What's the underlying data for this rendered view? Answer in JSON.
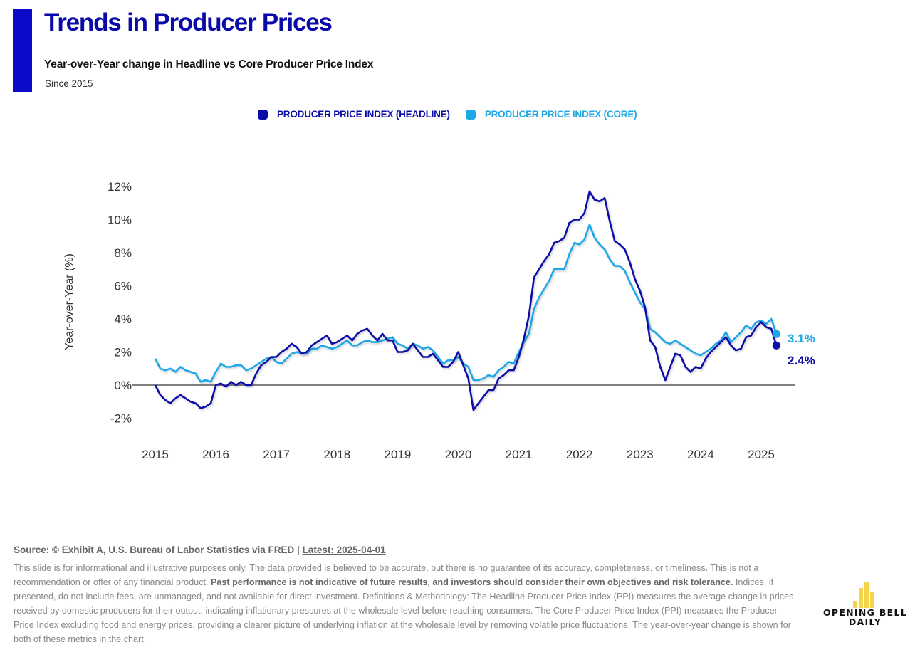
{
  "header": {
    "title": "Trends in Producer Prices",
    "subtitle": "Year-over-Year change in Headline vs Core Producer Price Index",
    "since": "Since 2015"
  },
  "legend": [
    {
      "label": "PRODUCER PRICE INDEX (HEADLINE)",
      "color": "#0a0aa8"
    },
    {
      "label": "PRODUCER PRICE INDEX (CORE)",
      "color": "#1fa8e6"
    }
  ],
  "chart_data": {
    "type": "line",
    "title": "Year-over-Year change in Headline vs Core Producer Price Index",
    "xlabel": "",
    "ylabel": "Year-over-Year (%)",
    "ylim": [
      -2,
      12
    ],
    "yticks": [
      -2,
      0,
      2,
      4,
      6,
      8,
      10,
      12
    ],
    "ytick_labels": [
      "-2%",
      "0%",
      "2%",
      "4%",
      "6%",
      "8%",
      "10%",
      "12%"
    ],
    "xticks": [
      2015,
      2016,
      2017,
      2018,
      2019,
      2020,
      2021,
      2022,
      2023,
      2024,
      2025
    ],
    "xtick_labels": [
      "2015",
      "2016",
      "2017",
      "2018",
      "2019",
      "2020",
      "2021",
      "2022",
      "2023",
      "2024",
      "2025"
    ],
    "x_start": "2015-01",
    "x_frequency": "monthly",
    "grid": false,
    "zero_line": true,
    "legend_position": "top-center",
    "series": [
      {
        "name": "PRODUCER PRICE INDEX (HEADLINE)",
        "color": "#0a0aa8",
        "end_label": "2.4%",
        "values": [
          0.0,
          -0.6,
          -0.9,
          -1.1,
          -0.8,
          -0.6,
          -0.8,
          -1.0,
          -1.1,
          -1.4,
          -1.3,
          -1.1,
          0.0,
          0.1,
          -0.1,
          0.2,
          0.0,
          0.2,
          0.0,
          0.0,
          0.7,
          1.2,
          1.4,
          1.7,
          1.7,
          2.0,
          2.2,
          2.5,
          2.3,
          1.9,
          2.0,
          2.4,
          2.6,
          2.8,
          3.0,
          2.5,
          2.6,
          2.8,
          3.0,
          2.7,
          3.1,
          3.3,
          3.4,
          3.0,
          2.7,
          3.1,
          2.7,
          2.7,
          2.0,
          2.0,
          2.1,
          2.5,
          2.1,
          1.7,
          1.7,
          1.9,
          1.5,
          1.1,
          1.1,
          1.4,
          2.0,
          1.2,
          0.4,
          -1.5,
          -1.1,
          -0.7,
          -0.3,
          -0.3,
          0.4,
          0.6,
          0.9,
          0.9,
          1.7,
          2.8,
          4.2,
          6.5,
          7.0,
          7.5,
          7.9,
          8.6,
          8.7,
          8.9,
          9.8,
          10.0,
          10.0,
          10.4,
          11.7,
          11.2,
          11.1,
          11.3,
          9.9,
          8.7,
          8.5,
          8.2,
          7.4,
          6.4,
          5.7,
          4.7,
          2.7,
          2.3,
          1.1,
          0.3,
          1.1,
          1.9,
          1.8,
          1.1,
          0.8,
          1.1,
          1.0,
          1.6,
          2.0,
          2.3,
          2.6,
          2.9,
          2.4,
          2.1,
          2.2,
          2.9,
          3.0,
          3.5,
          3.8,
          3.5,
          3.4,
          2.4
        ]
      },
      {
        "name": "PRODUCER PRICE INDEX (CORE)",
        "color": "#1fa8e6",
        "end_label": "3.1%",
        "values": [
          1.6,
          1.0,
          0.9,
          1.0,
          0.8,
          1.1,
          0.9,
          0.8,
          0.7,
          0.2,
          0.3,
          0.2,
          0.8,
          1.3,
          1.1,
          1.1,
          1.2,
          1.2,
          0.9,
          1.0,
          1.2,
          1.4,
          1.6,
          1.7,
          1.4,
          1.3,
          1.6,
          1.9,
          2.0,
          1.9,
          1.9,
          2.2,
          2.2,
          2.4,
          2.3,
          2.2,
          2.3,
          2.5,
          2.7,
          2.4,
          2.4,
          2.6,
          2.7,
          2.6,
          2.6,
          2.7,
          2.8,
          2.9,
          2.5,
          2.4,
          2.2,
          2.5,
          2.4,
          2.2,
          2.3,
          2.1,
          1.7,
          1.3,
          1.5,
          1.5,
          1.7,
          1.3,
          1.1,
          0.3,
          0.3,
          0.4,
          0.6,
          0.5,
          0.9,
          1.1,
          1.4,
          1.3,
          2.0,
          2.6,
          3.1,
          4.6,
          5.3,
          5.8,
          6.3,
          7.0,
          7.0,
          7.0,
          7.9,
          8.6,
          8.5,
          8.8,
          9.7,
          8.9,
          8.5,
          8.2,
          7.6,
          7.2,
          7.2,
          6.9,
          6.2,
          5.6,
          5.0,
          4.6,
          3.4,
          3.2,
          2.9,
          2.6,
          2.5,
          2.7,
          2.5,
          2.3,
          2.1,
          1.9,
          1.8,
          2.0,
          2.2,
          2.5,
          2.7,
          3.2,
          2.6,
          2.9,
          3.2,
          3.6,
          3.4,
          3.8,
          3.9,
          3.7,
          4.0,
          3.1
        ]
      }
    ]
  },
  "footer": {
    "source_prefix": "Source: © Exhibit A, U.S. Bureau of Labor Statistics via FRED | ",
    "latest": "Latest: 2025-04-01",
    "disclaimer_1": "This slide is for informational and illustrative purposes only. The data provided is believed to be accurate, but there is no guarantee of its accuracy, completeness, or timeliness. This is not a recommendation or offer of any financial product. ",
    "disclaimer_bold": "Past performance is not indicative of future results, and investors should consider their own objectives and risk tolerance.",
    "disclaimer_2": " Indices, if presented, do not include fees, are unmanaged, and not available for direct investment. Definitions & Methodology: The Headline Producer Price Index (PPI) measures the average change in prices received by domestic producers for their output, indicating inflationary pressures at the wholesale level before reaching consumers. The Core Producer Price Index (PPI) measures the Producer Price Index excluding food and energy prices, providing a clearer picture of underlying inflation at the wholesale level by removing volatile price fluctuations. The year-over-year change is shown for both of these metrics in the chart."
  },
  "logo": {
    "line1": "OPENING BELL",
    "line2": "DAILY"
  }
}
